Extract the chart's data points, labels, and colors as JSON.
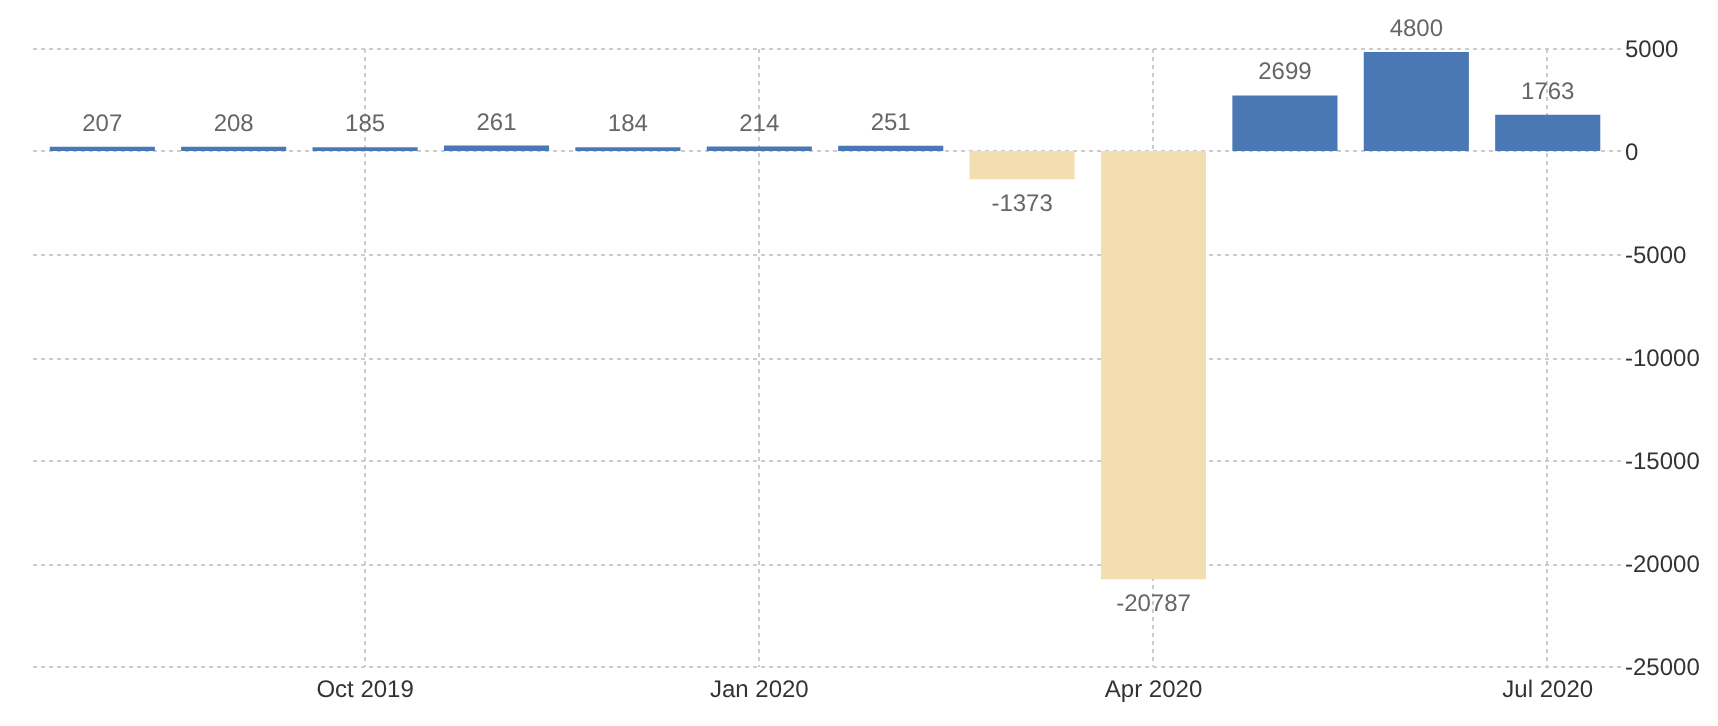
{
  "chart_data": {
    "type": "bar",
    "categories": [
      null,
      null,
      "Oct 2019",
      null,
      null,
      "Jan 2020",
      null,
      null,
      "Apr 2020",
      null,
      null,
      "Jul 2020"
    ],
    "values": [
      207,
      208,
      185,
      261,
      184,
      214,
      251,
      -1373,
      -20787,
      2699,
      4800,
      1763
    ],
    "colors": [
      "#4a78b5",
      "#4a78b5",
      "#4a78b5",
      "#4a78b5",
      "#4a78b5",
      "#4a78b5",
      "#4a78b5",
      "#f3deb1",
      "#f3deb1",
      "#4a78b5",
      "#4a78b5",
      "#4a78b5"
    ],
    "ylim": [
      -25000,
      5000
    ],
    "yticks": [
      -25000,
      -20000,
      -15000,
      -10000,
      -5000,
      0,
      5000
    ],
    "grid": true,
    "data_labels": true
  }
}
